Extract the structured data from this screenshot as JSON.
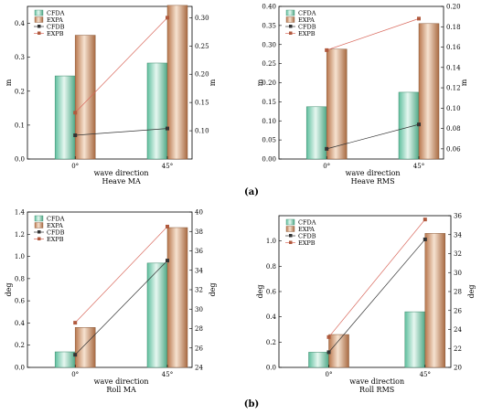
{
  "panel_labels": {
    "a": "(a)",
    "b": "(b)"
  },
  "colors": {
    "green": "#7fd3b8",
    "tan": "#cc8f66",
    "dark": "#333333",
    "brown": "#b05a3e",
    "red": "#d96a5e"
  },
  "chart_data": [
    {
      "type": "bar",
      "title": "Heave MA",
      "xlabel": "wave direction",
      "ylabel": "m",
      "y2label": "m",
      "categories": [
        "0°",
        "45°"
      ],
      "ylim": [
        0,
        0.45
      ],
      "yticks": [
        "0.0",
        "0.1",
        "0.2",
        "0.3",
        "0.4"
      ],
      "y2lim": [
        0.05,
        0.32
      ],
      "y2ticks": [
        "0.10",
        "0.15",
        "0.20",
        "0.25",
        "0.30"
      ],
      "series": [
        {
          "name": "CFDA",
          "kind": "bar",
          "axis": "left",
          "values": [
            0.245,
            0.283
          ]
        },
        {
          "name": "EXPA",
          "kind": "bar",
          "axis": "left",
          "values": [
            0.365,
            0.453
          ]
        },
        {
          "name": "CFDB",
          "kind": "line",
          "axis": "right",
          "values": [
            0.092,
            0.104
          ]
        },
        {
          "name": "EXPB",
          "kind": "line",
          "axis": "right",
          "values": [
            0.132,
            0.3
          ]
        }
      ],
      "legend": "top-left",
      "grid": false
    },
    {
      "type": "bar",
      "title": "Heave RMS",
      "xlabel": "wave direction",
      "ylabel": "m",
      "y2label": "m",
      "categories": [
        "0°",
        "45°"
      ],
      "ylim": [
        0,
        0.4
      ],
      "yticks": [
        "0.00",
        "0.05",
        "0.10",
        "0.15",
        "0.20",
        "0.25",
        "0.30",
        "0.35",
        "0.40"
      ],
      "y2lim": [
        0.05,
        0.2
      ],
      "y2ticks": [
        "0.06",
        "0.08",
        "0.10",
        "0.12",
        "0.14",
        "0.16",
        "0.18",
        "0.20"
      ],
      "series": [
        {
          "name": "CFDA",
          "kind": "bar",
          "axis": "left",
          "values": [
            0.137,
            0.175
          ]
        },
        {
          "name": "EXPA",
          "kind": "bar",
          "axis": "left",
          "values": [
            0.288,
            0.355
          ]
        },
        {
          "name": "CFDB",
          "kind": "line",
          "axis": "right",
          "values": [
            0.06,
            0.084
          ]
        },
        {
          "name": "EXPB",
          "kind": "line",
          "axis": "right",
          "values": [
            0.157,
            0.188
          ]
        }
      ],
      "legend": "top-left",
      "grid": false
    },
    {
      "type": "bar",
      "title": "Roll MA",
      "xlabel": "wave direction",
      "ylabel": "deg",
      "y2label": "deg",
      "categories": [
        "0°",
        "45°"
      ],
      "ylim": [
        0,
        1.4
      ],
      "yticks": [
        "0.0",
        "0.2",
        "0.4",
        "0.6",
        "0.8",
        "1.0",
        "1.2",
        "1.4"
      ],
      "y2lim": [
        24,
        40
      ],
      "y2ticks": [
        "24",
        "26",
        "28",
        "30",
        "32",
        "34",
        "36",
        "38",
        "40"
      ],
      "series": [
        {
          "name": "CFDA",
          "kind": "bar",
          "axis": "left",
          "values": [
            0.14,
            0.94
          ]
        },
        {
          "name": "EXPA",
          "kind": "bar",
          "axis": "left",
          "values": [
            0.36,
            1.26
          ]
        },
        {
          "name": "CFDB",
          "kind": "line",
          "axis": "right",
          "values": [
            25.3,
            35.0
          ]
        },
        {
          "name": "EXPB",
          "kind": "line",
          "axis": "right",
          "values": [
            28.6,
            38.5
          ]
        }
      ],
      "legend": "top-left",
      "grid": false
    },
    {
      "type": "bar",
      "title": "Roll RMS",
      "xlabel": "wave direction",
      "ylabel": "deg",
      "y2label": "deg",
      "categories": [
        "0°",
        "45°"
      ],
      "ylim": [
        0,
        1.2
      ],
      "yticks": [
        "0.0",
        "0.2",
        "0.4",
        "0.6",
        "0.8",
        "1.0"
      ],
      "y2lim": [
        20,
        36
      ],
      "y2ticks": [
        "20",
        "22",
        "24",
        "26",
        "28",
        "30",
        "32",
        "34",
        "36"
      ],
      "series": [
        {
          "name": "CFDA",
          "kind": "bar",
          "axis": "left",
          "values": [
            0.12,
            0.44
          ]
        },
        {
          "name": "EXPA",
          "kind": "bar",
          "axis": "left",
          "values": [
            0.26,
            1.06
          ]
        },
        {
          "name": "CFDB",
          "kind": "line",
          "axis": "right",
          "values": [
            21.6,
            33.5
          ]
        },
        {
          "name": "EXPB",
          "kind": "line",
          "axis": "right",
          "values": [
            23.2,
            35.6
          ]
        }
      ],
      "legend": "top-left",
      "grid": false
    }
  ]
}
